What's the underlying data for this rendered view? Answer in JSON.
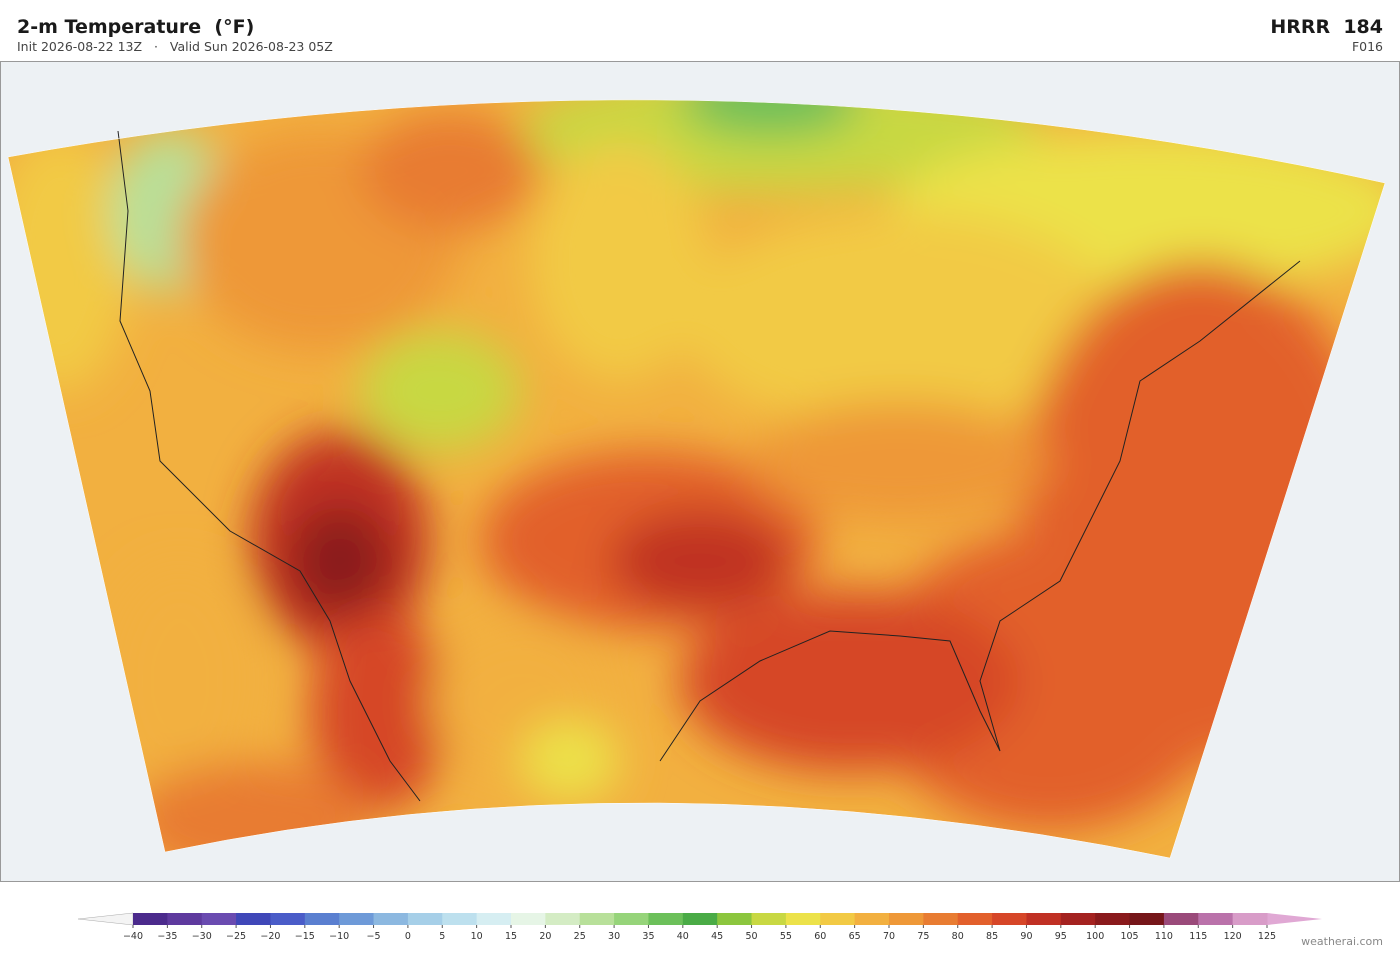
{
  "header": {
    "title": "2-m Temperature  (°F)",
    "init": "Init 2026-08-22 13Z",
    "separator": "·",
    "valid": "Valid Sun 2026-08-23 05Z",
    "model": "HRRR  184",
    "forecast_hour": "F016"
  },
  "colorbar": {
    "ticks": [
      {
        "value": -40,
        "label": "−40"
      },
      {
        "value": -35,
        "label": "−35"
      },
      {
        "value": -30,
        "label": "−30"
      },
      {
        "value": -25,
        "label": "−25"
      },
      {
        "value": -20,
        "label": "−20"
      },
      {
        "value": -15,
        "label": "−15"
      },
      {
        "value": -10,
        "label": "−10"
      },
      {
        "value": -5,
        "label": "−5"
      },
      0,
      5,
      10,
      15,
      20,
      25,
      30,
      35,
      40,
      45,
      50,
      55,
      60,
      65,
      70,
      75,
      80,
      85,
      90,
      95,
      100,
      105,
      110,
      115,
      120,
      125
    ],
    "colors": [
      "#4b2a8c",
      "#5e3a9e",
      "#6a4bb0",
      "#3f47b8",
      "#4a5cc8",
      "#5a7fd0",
      "#6e9ad8",
      "#8cb8e0",
      "#a6cfe8",
      "#bde0ee",
      "#d6eef2",
      "#e6f5e6",
      "#d4ecc4",
      "#b8e09a",
      "#96d47a",
      "#6cc05a",
      "#4aab46",
      "#8cc63e",
      "#c8d843",
      "#ece24a",
      "#f2ca45",
      "#f2b040",
      "#ee9838",
      "#e87c32",
      "#e2602c",
      "#d64628",
      "#c03024",
      "#a42220",
      "#8a1a1c",
      "#76161a",
      "#9a4a7a",
      "#ba72aa",
      "#d89cc8"
    ],
    "under_color": "#f4f4f4",
    "over_color": "#e0a8d4"
  },
  "credit": "weatherai.com"
}
